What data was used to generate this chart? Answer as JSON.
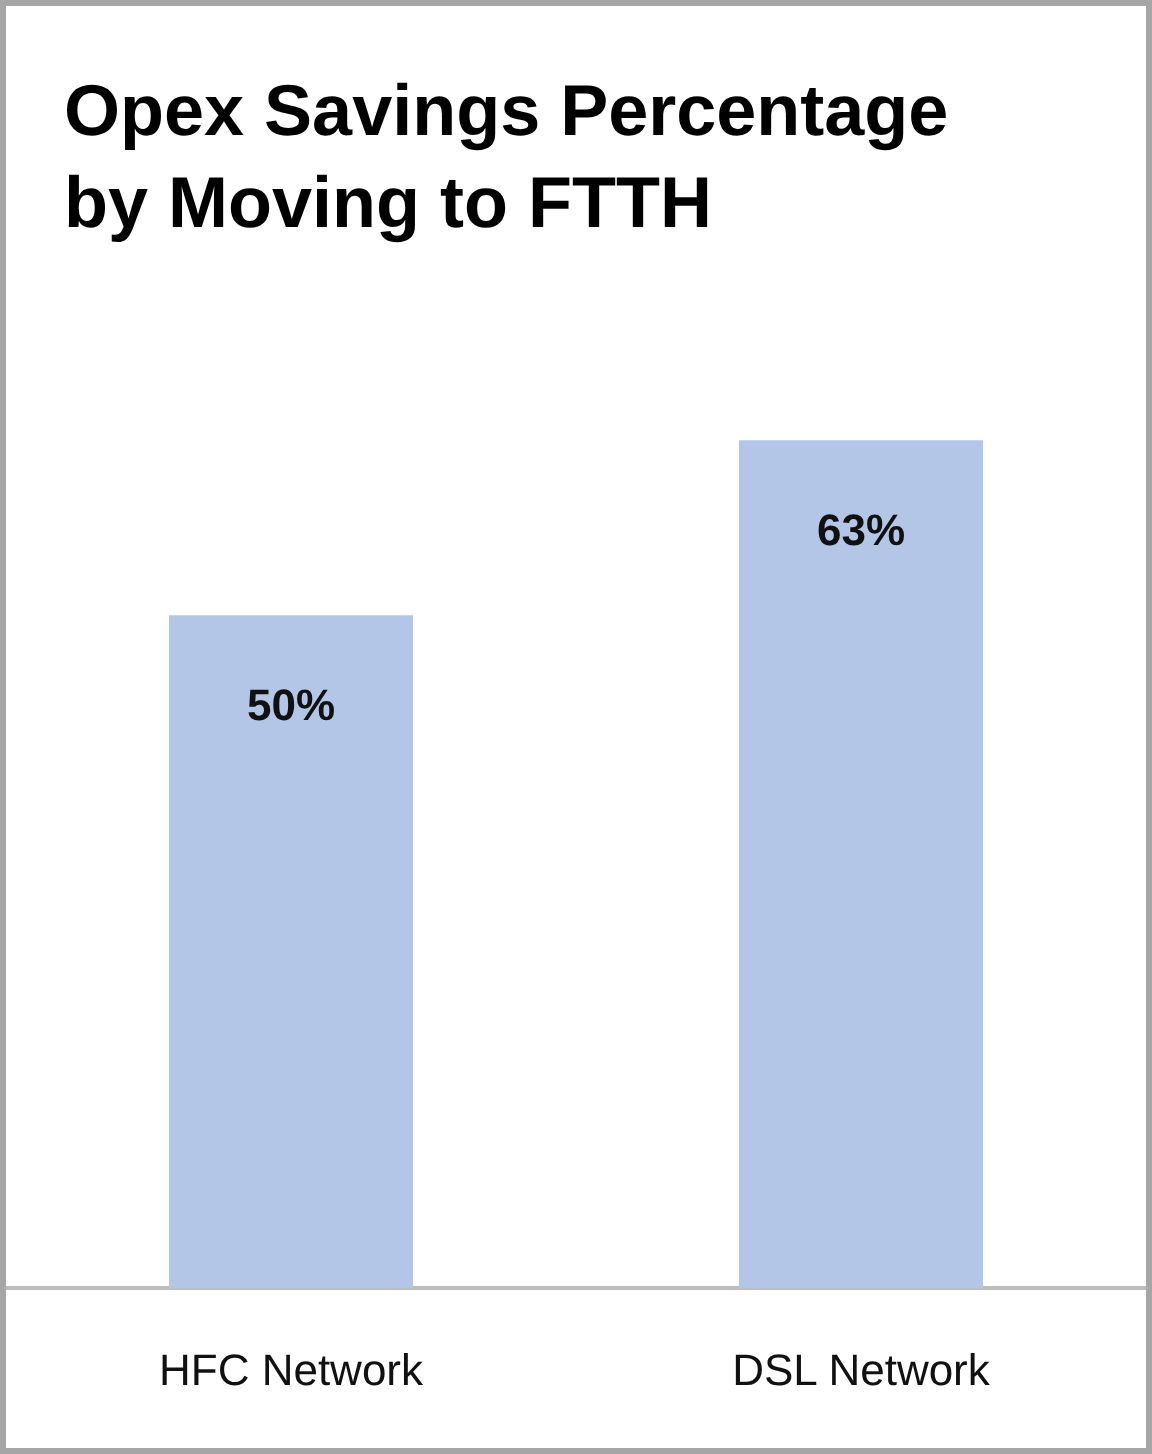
{
  "chart_data": {
    "type": "bar",
    "title": "Opex Savings Percentage by Moving to FTTH",
    "categories": [
      "HFC Network",
      "DSL Network"
    ],
    "values": [
      50,
      63
    ],
    "value_labels": [
      "50%",
      "63%"
    ],
    "color": "#b4c6e7"
  }
}
